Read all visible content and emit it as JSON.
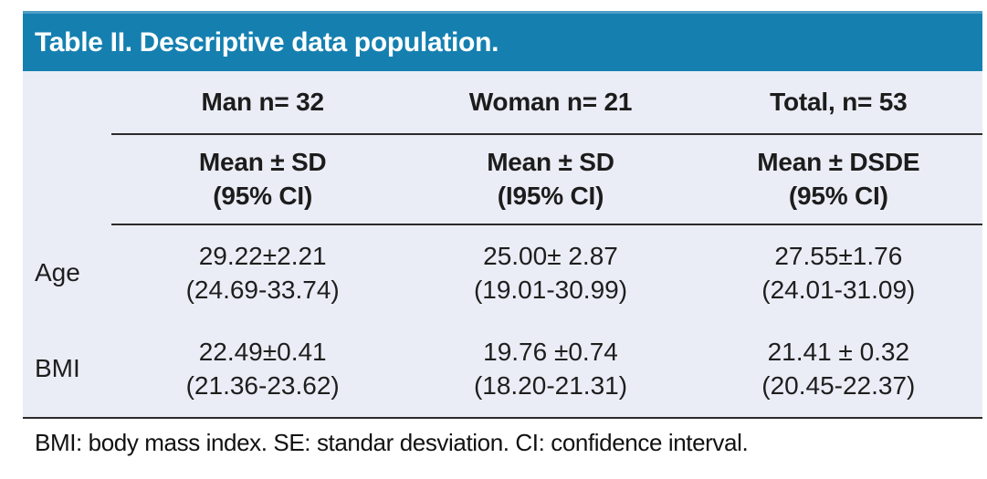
{
  "title": "Table II. Descriptive data population.",
  "columns": [
    {
      "label": "Man n= 32",
      "sub1": "Mean ± SD",
      "sub2": "(95% CI)"
    },
    {
      "label": "Woman n= 21",
      "sub1": "Mean ± SD",
      "sub2": "(I95% CI)"
    },
    {
      "label": "Total, n= 53",
      "sub1": "Mean ± DSDE",
      "sub2": "(95% CI)"
    }
  ],
  "rows": [
    {
      "label": "Age",
      "cells": [
        {
          "mean": "29.22±2.21",
          "ci": "(24.69-33.74)"
        },
        {
          "mean": "25.00± 2.87",
          "ci": "(19.01-30.99)"
        },
        {
          "mean": "27.55±1.76",
          "ci": "(24.01-31.09)"
        }
      ]
    },
    {
      "label": "BMI",
      "cells": [
        {
          "mean": "22.49±0.41",
          "ci": "(21.36-23.62)"
        },
        {
          "mean": "19.76 ±0.74",
          "ci": "(18.20-21.31)"
        },
        {
          "mean": "21.41 ± 0.32",
          "ci": "(20.45-22.37)"
        }
      ]
    }
  ],
  "footnote": "BMI: body mass index. SE: standar desviation. CI: confidence interval.",
  "colors": {
    "header_bar": "#1580B0",
    "header_bar_top_edge": "#4D9EC6",
    "body_background": "#EAEDF6",
    "rule": "#2B2B2B",
    "title_text": "#FFFFFF",
    "body_text": "#1C1C1C"
  }
}
